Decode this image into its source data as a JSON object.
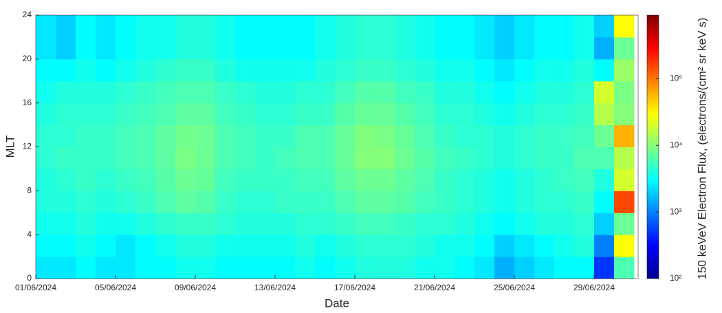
{
  "chart_data": {
    "type": "heatmap",
    "x_label": "Date",
    "y_label": "MLT",
    "colorbar_label": "150 keVeV Electron Flux, (electrons/(cm² sr keV s)",
    "colormap": "jet",
    "z_scale": "log",
    "x": [
      "2024-06-01",
      "2024-06-02",
      "2024-06-03",
      "2024-06-04",
      "2024-06-05",
      "2024-06-06",
      "2024-06-07",
      "2024-06-08",
      "2024-06-09",
      "2024-06-10",
      "2024-06-11",
      "2024-06-12",
      "2024-06-13",
      "2024-06-14",
      "2024-06-15",
      "2024-06-16",
      "2024-06-17",
      "2024-06-18",
      "2024-06-19",
      "2024-06-20",
      "2024-06-21",
      "2024-06-22",
      "2024-06-23",
      "2024-06-24",
      "2024-06-25",
      "2024-06-26",
      "2024-06-27",
      "2024-06-28",
      "2024-06-29",
      "2024-06-30"
    ],
    "y": [
      1,
      3,
      5,
      7,
      9,
      11,
      13,
      15,
      17,
      19,
      21,
      23
    ],
    "z": [
      [
        2500,
        2500,
        3000,
        2500,
        2500,
        3000,
        3000,
        3500,
        3500,
        3000,
        3000,
        3000,
        3000,
        3500,
        3000,
        3500,
        4000,
        4000,
        4000,
        3500,
        3500,
        3000,
        2500,
        1500,
        2000,
        2500,
        3000,
        3000,
        500,
        6000
      ],
      [
        3000,
        3000,
        3500,
        3000,
        2500,
        3000,
        3500,
        4000,
        4000,
        3500,
        3500,
        3500,
        3500,
        4000,
        3500,
        4000,
        4500,
        4500,
        4500,
        4000,
        3500,
        3500,
        3000,
        2000,
        2500,
        3000,
        3500,
        4000,
        1000,
        30000
      ],
      [
        3500,
        3500,
        4000,
        3500,
        3500,
        4000,
        4500,
        5000,
        5000,
        4500,
        4000,
        4000,
        4000,
        4500,
        4500,
        5000,
        5500,
        5500,
        5000,
        4500,
        4500,
        4000,
        3500,
        3000,
        3500,
        4000,
        4000,
        4500,
        2000,
        8000
      ],
      [
        4000,
        4000,
        4500,
        4000,
        4500,
        5000,
        6000,
        7000,
        6500,
        5000,
        4500,
        4500,
        5000,
        5000,
        5000,
        6000,
        7000,
        7000,
        6500,
        5500,
        5000,
        4500,
        4000,
        3500,
        4000,
        4500,
        4500,
        5000,
        3000,
        150000
      ],
      [
        4000,
        4500,
        5000,
        4500,
        5000,
        5500,
        6500,
        8000,
        7500,
        5500,
        5000,
        5000,
        5000,
        5500,
        5500,
        7000,
        8000,
        8000,
        7000,
        6000,
        5000,
        4500,
        4000,
        3500,
        4000,
        4500,
        5000,
        5500,
        4000,
        20000
      ],
      [
        4500,
        5000,
        5000,
        5000,
        5500,
        6000,
        7000,
        9000,
        8000,
        6000,
        5500,
        5000,
        5500,
        6000,
        6000,
        7500,
        10000,
        10000,
        8000,
        6500,
        5500,
        5000,
        4500,
        4000,
        4500,
        5000,
        5000,
        6000,
        6000,
        15000
      ],
      [
        4500,
        4500,
        5000,
        5000,
        5500,
        6000,
        7000,
        8500,
        8000,
        6000,
        5500,
        5000,
        5000,
        6000,
        6000,
        7500,
        9500,
        9000,
        7500,
        6000,
        5000,
        4500,
        4500,
        4000,
        4500,
        5000,
        5000,
        5500,
        8000,
        60000
      ],
      [
        4000,
        4500,
        4500,
        4500,
        5000,
        5500,
        6000,
        7000,
        7000,
        5500,
        5000,
        4500,
        4500,
        5000,
        5000,
        6500,
        7500,
        7500,
        6500,
        5500,
        4500,
        4500,
        4000,
        3500,
        4000,
        4500,
        4500,
        5000,
        15000,
        10000
      ],
      [
        3500,
        4000,
        4000,
        4000,
        4500,
        5000,
        5500,
        6000,
        6000,
        5000,
        4500,
        4000,
        4000,
        4500,
        4500,
        5500,
        6500,
        6500,
        5500,
        5000,
        4000,
        4000,
        3500,
        3000,
        3500,
        4000,
        4000,
        4500,
        20000,
        9000
      ],
      [
        3000,
        3000,
        3500,
        3000,
        3500,
        4000,
        4500,
        5000,
        5000,
        4000,
        3500,
        3500,
        3500,
        3500,
        4000,
        4500,
        5000,
        5000,
        4500,
        4000,
        3500,
        3500,
        3000,
        2500,
        3000,
        3500,
        3500,
        4000,
        3000,
        12000
      ],
      [
        2500,
        2000,
        3000,
        2500,
        3000,
        3500,
        3500,
        4000,
        4000,
        3500,
        3000,
        3000,
        3000,
        3000,
        3500,
        4000,
        4500,
        4500,
        4000,
        3500,
        3000,
        3000,
        2500,
        2000,
        2500,
        3000,
        3000,
        3500,
        1500,
        8000
      ],
      [
        2500,
        2000,
        3000,
        2500,
        3000,
        3500,
        3500,
        4000,
        4000,
        3500,
        3000,
        3000,
        3000,
        3000,
        3500,
        4000,
        4500,
        4500,
        4000,
        3500,
        3000,
        3000,
        2500,
        2000,
        2500,
        3000,
        3000,
        3500,
        2000,
        30000
      ]
    ],
    "xlim": [
      "2024-06-01",
      "2024-07-01"
    ],
    "xticks": [
      {
        "value": "2024-06-01",
        "label": "01/06/2024"
      },
      {
        "value": "2024-06-05",
        "label": "05/06/2024"
      },
      {
        "value": "2024-06-09",
        "label": "09/06/2024"
      },
      {
        "value": "2024-06-13",
        "label": "13/06/2024"
      },
      {
        "value": "2024-06-17",
        "label": "17/06/2024"
      },
      {
        "value": "2024-06-21",
        "label": "21/06/2024"
      },
      {
        "value": "2024-06-25",
        "label": "25/06/2024"
      },
      {
        "value": "2024-06-29",
        "label": "29/06/2024"
      }
    ],
    "ylim": [
      0,
      24
    ],
    "yticks": [
      0,
      4,
      8,
      12,
      16,
      20,
      24
    ],
    "zlim": [
      100,
      900000
    ],
    "zticks": [
      {
        "value": 100,
        "label": "10²"
      },
      {
        "value": 1000,
        "label": "10³"
      },
      {
        "value": 10000,
        "label": "10⁴"
      },
      {
        "value": 100000,
        "label": "10⁵"
      }
    ]
  }
}
